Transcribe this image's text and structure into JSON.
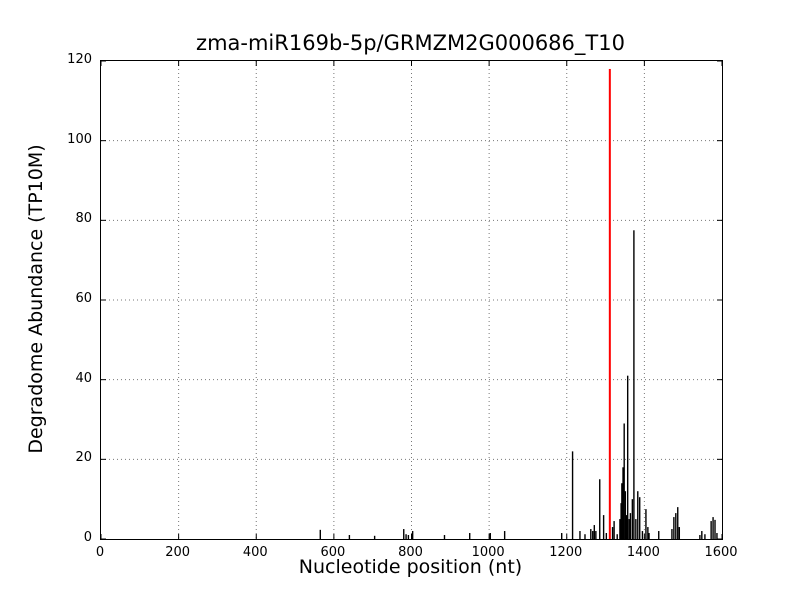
{
  "chart_data": {
    "type": "bar",
    "title": "zma-miR169b-5p/GRMZM2G000686_T10",
    "xlabel": "Nucleotide position (nt)",
    "ylabel": "Degradome Abundance (TP10M)",
    "xlim": [
      0,
      1600
    ],
    "ylim": [
      0,
      120
    ],
    "x_ticks": [
      0,
      200,
      400,
      600,
      800,
      1000,
      1200,
      1400,
      1600
    ],
    "y_ticks": [
      0,
      20,
      40,
      60,
      80,
      100,
      120
    ],
    "grid": "dotted",
    "legend": "none",
    "bar_color": "#000000",
    "grid_color": "#777777",
    "axis_color": "#000000",
    "target_site": {
      "position": 1311,
      "value": 118,
      "color": "#ff0000"
    },
    "spikes": [
      [
        565,
        2.3
      ],
      [
        640,
        1
      ],
      [
        705,
        0.8
      ],
      [
        780,
        2.5
      ],
      [
        786,
        1.2
      ],
      [
        792,
        1
      ],
      [
        803,
        2
      ],
      [
        885,
        1
      ],
      [
        950,
        1.5
      ],
      [
        1003,
        1.5
      ],
      [
        1040,
        2
      ],
      [
        1187,
        1.5
      ],
      [
        1215,
        22
      ],
      [
        1234,
        2
      ],
      [
        1247,
        1.2
      ],
      [
        1262,
        2.5
      ],
      [
        1267,
        2
      ],
      [
        1271,
        3.5
      ],
      [
        1275,
        2
      ],
      [
        1285,
        15
      ],
      [
        1295,
        6
      ],
      [
        1302,
        1.5
      ],
      [
        1318,
        3
      ],
      [
        1322,
        4.5
      ],
      [
        1330,
        1.2
      ],
      [
        1337,
        5
      ],
      [
        1340,
        9
      ],
      [
        1342,
        14
      ],
      [
        1345,
        18
      ],
      [
        1348,
        29
      ],
      [
        1351,
        12
      ],
      [
        1354,
        6
      ],
      [
        1357,
        41
      ],
      [
        1361,
        5
      ],
      [
        1364,
        6.5
      ],
      [
        1369,
        10
      ],
      [
        1373,
        77.5
      ],
      [
        1378,
        5
      ],
      [
        1383,
        12
      ],
      [
        1388,
        10.5
      ],
      [
        1395,
        2
      ],
      [
        1404,
        7.5
      ],
      [
        1409,
        3
      ],
      [
        1412,
        1.5
      ],
      [
        1437,
        2
      ],
      [
        1471,
        2.5
      ],
      [
        1476,
        5.5
      ],
      [
        1481,
        6.5
      ],
      [
        1486,
        8
      ],
      [
        1490,
        3
      ],
      [
        1543,
        1
      ],
      [
        1548,
        2
      ],
      [
        1556,
        1.2
      ],
      [
        1572,
        4.5
      ],
      [
        1577,
        5.5
      ],
      [
        1582,
        4.8
      ],
      [
        1587,
        1.5
      ]
    ]
  }
}
